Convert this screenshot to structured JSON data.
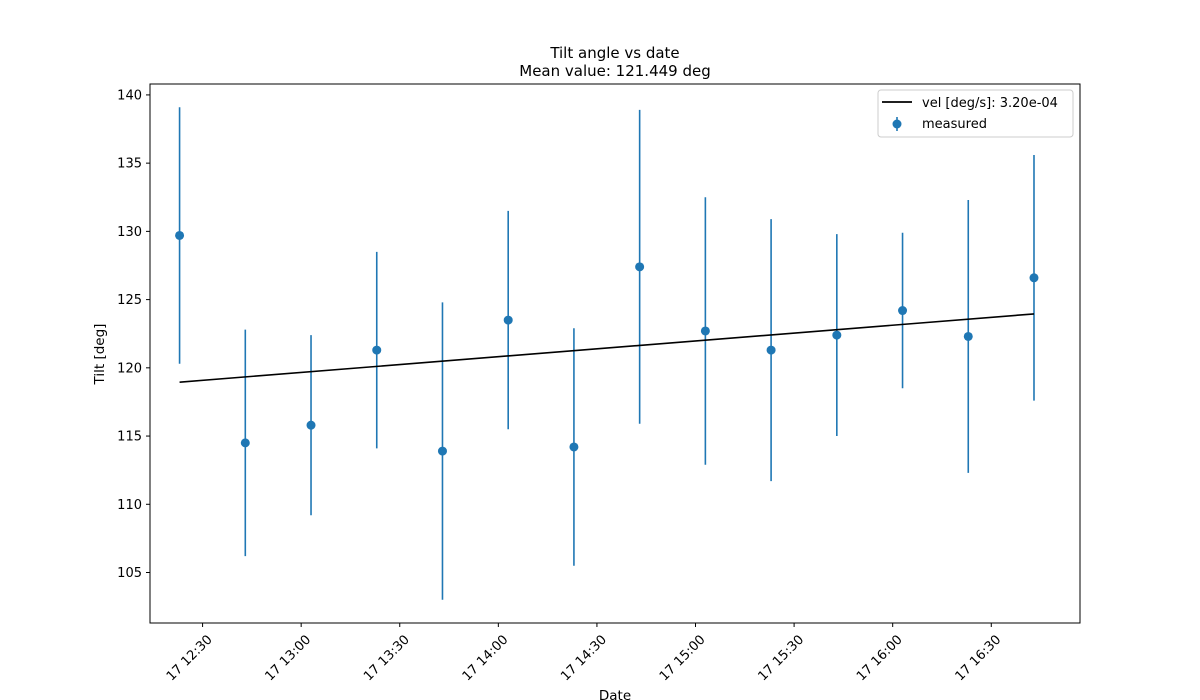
{
  "chart_data": {
    "type": "scatter",
    "title": "Tilt angle vs date",
    "subtitle": "Mean value: 121.449 deg",
    "xlabel": "Date",
    "ylabel": "Tilt [deg]",
    "xlim": [
      "17 12:14",
      "17 16:57"
    ],
    "ylim": [
      101.3,
      140.8
    ],
    "x_ticks": [
      "17 12:30",
      "17 13:00",
      "17 13:30",
      "17 14:00",
      "17 14:30",
      "17 15:00",
      "17 15:30",
      "17 16:00",
      "17 16:30"
    ],
    "y_ticks": [
      105,
      110,
      115,
      120,
      125,
      130,
      135,
      140
    ],
    "grid": false,
    "legend_position": "top-right",
    "series": [
      {
        "name": "measured",
        "kind": "errorbar",
        "color": "#1f77b4",
        "points": [
          {
            "x": "17 12:23",
            "y": 129.7,
            "yerr": 9.4
          },
          {
            "x": "17 12:43",
            "y": 114.5,
            "yerr": 8.3
          },
          {
            "x": "17 13:03",
            "y": 115.8,
            "yerr": 6.6
          },
          {
            "x": "17 13:23",
            "y": 121.3,
            "yerr": 7.2
          },
          {
            "x": "17 13:43",
            "y": 113.9,
            "yerr": 10.9
          },
          {
            "x": "17 14:03",
            "y": 123.5,
            "yerr": 8.0
          },
          {
            "x": "17 14:23",
            "y": 114.2,
            "yerr": 8.7
          },
          {
            "x": "17 14:43",
            "y": 127.4,
            "yerr": 11.5
          },
          {
            "x": "17 15:03",
            "y": 122.7,
            "yerr": 9.8
          },
          {
            "x": "17 15:23",
            "y": 121.3,
            "yerr": 9.6
          },
          {
            "x": "17 15:43",
            "y": 122.4,
            "yerr": 7.4
          },
          {
            "x": "17 16:03",
            "y": 124.2,
            "yerr": 5.7
          },
          {
            "x": "17 16:23",
            "y": 122.3,
            "yerr": 10.0
          },
          {
            "x": "17 16:43",
            "y": 126.6,
            "yerr": 9.0
          }
        ]
      },
      {
        "name": "vel [deg/s]: 3.20e-04",
        "kind": "line",
        "color": "#000000",
        "points": [
          {
            "x": "17 12:23",
            "y": 118.95
          },
          {
            "x": "17 16:43",
            "y": 123.95
          }
        ]
      }
    ]
  }
}
